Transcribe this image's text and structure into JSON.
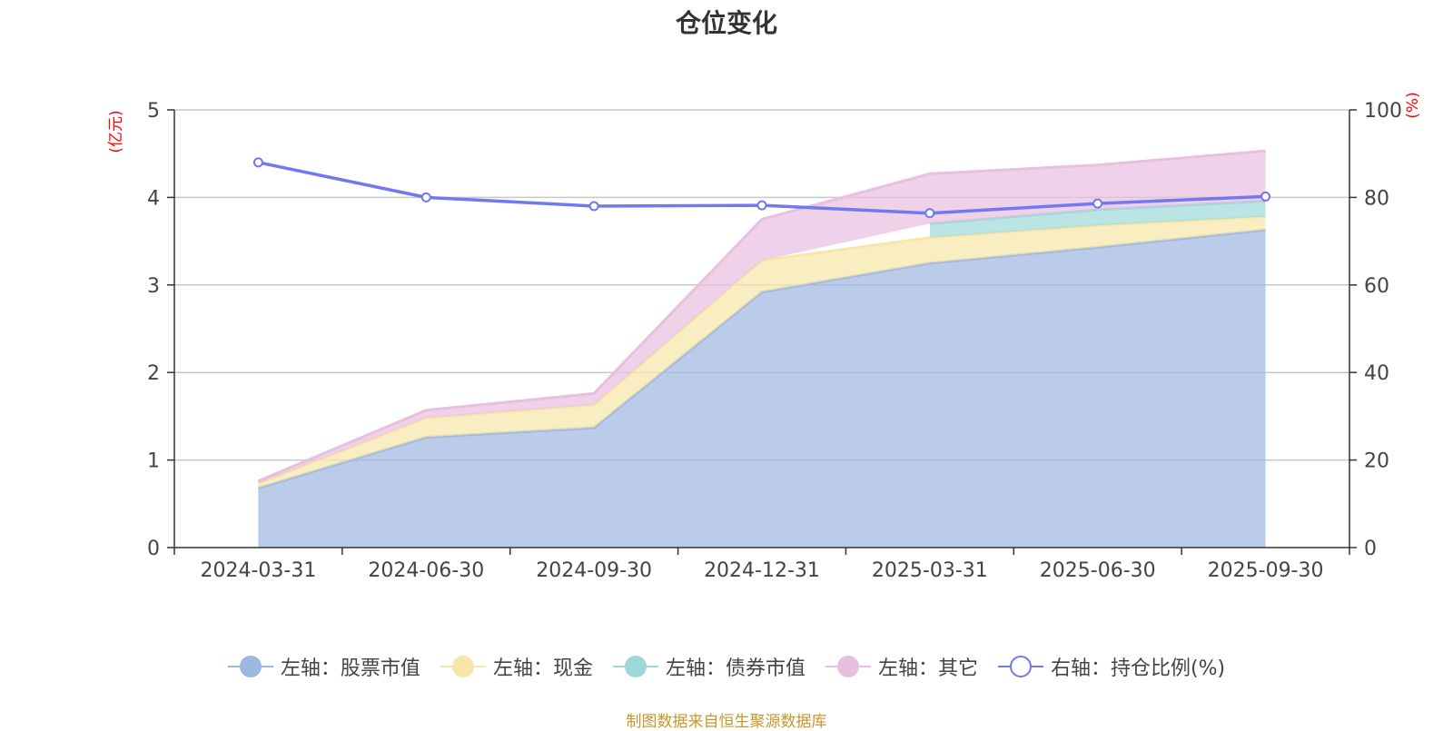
{
  "chart_data": {
    "type": "area",
    "title": "仓位变化",
    "categories": [
      "2024-03-31",
      "2024-06-30",
      "2024-09-30",
      "2024-12-31",
      "2025-03-31",
      "2025-06-30",
      "2025-09-30"
    ],
    "left_axis": {
      "unit": "(亿元)",
      "ylim": [
        0,
        5
      ],
      "ticks": [
        0,
        1,
        2,
        3,
        4,
        5
      ]
    },
    "right_axis": {
      "unit": "(%)",
      "ylim": [
        0,
        100
      ],
      "ticks": [
        0,
        20,
        40,
        60,
        80,
        100
      ]
    },
    "grid": true,
    "stacked": true,
    "series": [
      {
        "name": "左轴：股票市值",
        "axis": "left",
        "type": "area",
        "color": "#9cb7e0",
        "values": [
          0.68,
          1.26,
          1.37,
          2.92,
          3.25,
          3.43,
          3.63
        ]
      },
      {
        "name": "左轴：现金",
        "axis": "left",
        "type": "area",
        "color": "#f7e6a8",
        "values": [
          0.05,
          0.22,
          0.26,
          0.36,
          0.29,
          0.25,
          0.15
        ]
      },
      {
        "name": "左轴：债券市值",
        "axis": "left",
        "type": "area",
        "color": "#9ed8d8",
        "values": [
          null,
          null,
          null,
          null,
          0.16,
          0.18,
          0.18
        ]
      },
      {
        "name": "左轴：其它",
        "axis": "left",
        "type": "area",
        "color": "#e8bfdf",
        "values": [
          0.03,
          0.09,
          0.13,
          0.47,
          0.57,
          0.51,
          0.57
        ]
      },
      {
        "name": "右轴：持仓比例(%)",
        "axis": "right",
        "type": "line",
        "color": "#7279ee",
        "values": [
          88,
          80,
          78,
          78.2,
          76.4,
          78.6,
          80.2
        ]
      }
    ],
    "legend_position": "bottom"
  },
  "source_note": "制图数据来自恒生聚源数据库"
}
